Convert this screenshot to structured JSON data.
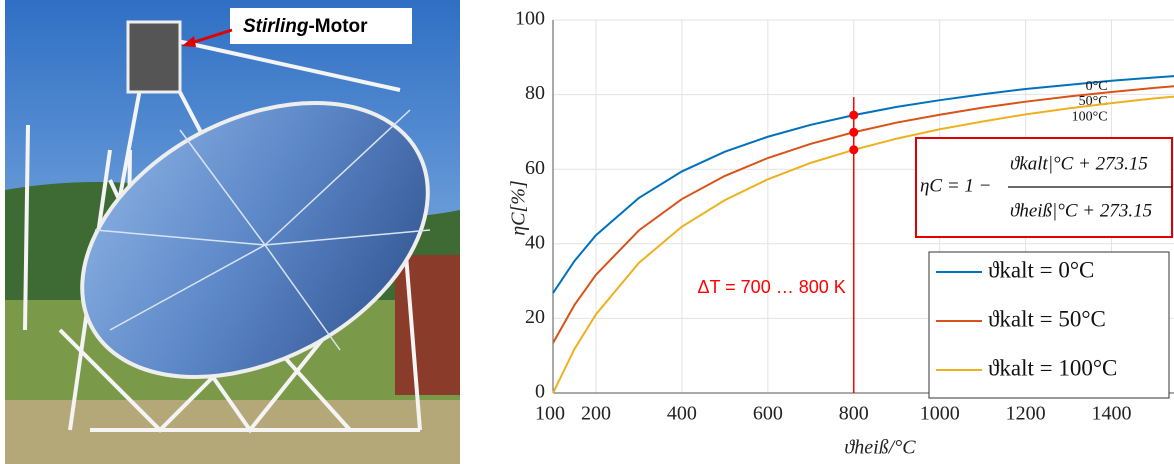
{
  "image": {
    "label_italic": "Stirling",
    "label_rest": "-Motor"
  },
  "chart_data": {
    "type": "line",
    "x_label": "ϑheiß/°C",
    "y_label": "ηC[%]",
    "x": [
      100,
      150,
      200,
      300,
      400,
      500,
      600,
      700,
      800,
      900,
      1000,
      1100,
      1200,
      1300,
      1400,
      1500,
      1550
    ],
    "series": [
      {
        "name": "ϑkalt = 0°C",
        "end_label": "0°C",
        "color": "#0072bd",
        "values": [
          26.8,
          35.4,
          42.3,
          52.3,
          59.4,
          64.7,
          68.7,
          71.9,
          74.5,
          76.7,
          78.5,
          80.1,
          81.5,
          82.6,
          83.7,
          84.6,
          85.0
        ]
      },
      {
        "name": "ϑkalt = 50°C",
        "end_label": "50°C",
        "color": "#d95319",
        "values": [
          13.4,
          23.6,
          31.7,
          43.6,
          52.0,
          58.2,
          63.0,
          66.8,
          69.9,
          72.5,
          74.6,
          76.5,
          78.1,
          79.5,
          80.7,
          81.8,
          82.3
        ]
      },
      {
        "name": "ϑkalt = 100°C",
        "end_label": "100°C",
        "color": "#edb120",
        "values": [
          0,
          11.8,
          21.1,
          34.9,
          44.6,
          51.7,
          57.3,
          61.7,
          65.2,
          68.2,
          70.7,
          72.8,
          74.7,
          76.3,
          77.7,
          79.0,
          79.5
        ]
      }
    ],
    "xlim": [
      100,
      1550
    ],
    "ylim": [
      0,
      100
    ],
    "xticks": [
      100,
      200,
      400,
      600,
      800,
      1000,
      1200,
      1400
    ],
    "yticks": [
      0,
      20,
      40,
      60,
      80,
      100
    ],
    "grid": true,
    "annotation": "ΔT = 700 … 800 K",
    "annotation_color": "#ff0000",
    "marker_index": 8,
    "formula": {
      "lhs": "ηC = 1 −",
      "numerator": "ϑkalt|°C + 273.15",
      "denominator": "ϑheiß|°C + 273.15"
    },
    "legend": "lower right"
  }
}
